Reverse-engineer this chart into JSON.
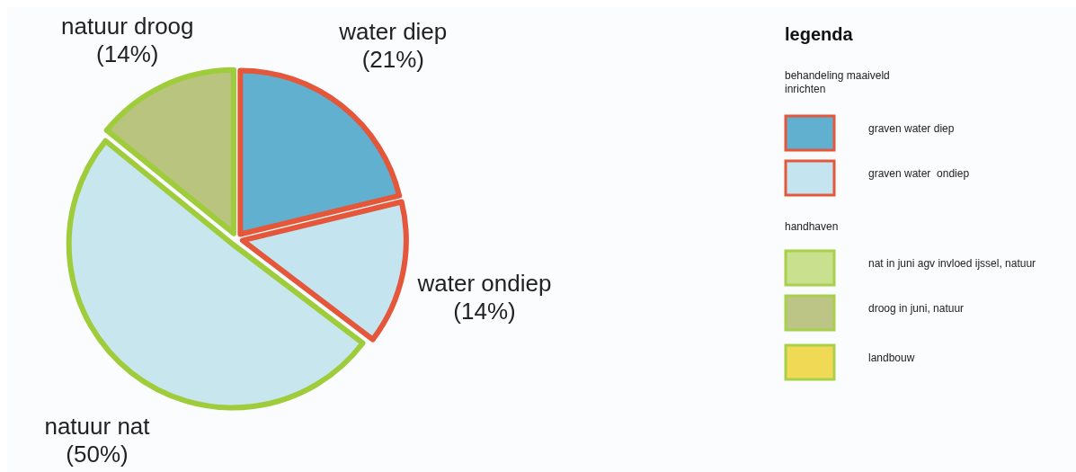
{
  "chart_data": {
    "type": "pie",
    "categories": [
      "water diep",
      "water ondiep",
      "natuur nat",
      "natuur droog"
    ],
    "values": [
      21,
      14,
      50,
      14
    ],
    "colors": [
      "#62b0d0",
      "#c4e4f0",
      "#c8e6ee",
      "#b9c47f"
    ],
    "value_labels": [
      "(21%)",
      "(14%)",
      "(50%)",
      "(14%)"
    ],
    "legend_title": "legenda",
    "annotations": [
      "behandeling maaiveld inrichten",
      "graven water diep",
      "graven water  ondiep",
      "handhaven",
      "nat in juni agv invloed ijssel, natuur",
      "droog in juni, natuur",
      "landbouw"
    ]
  }
}
